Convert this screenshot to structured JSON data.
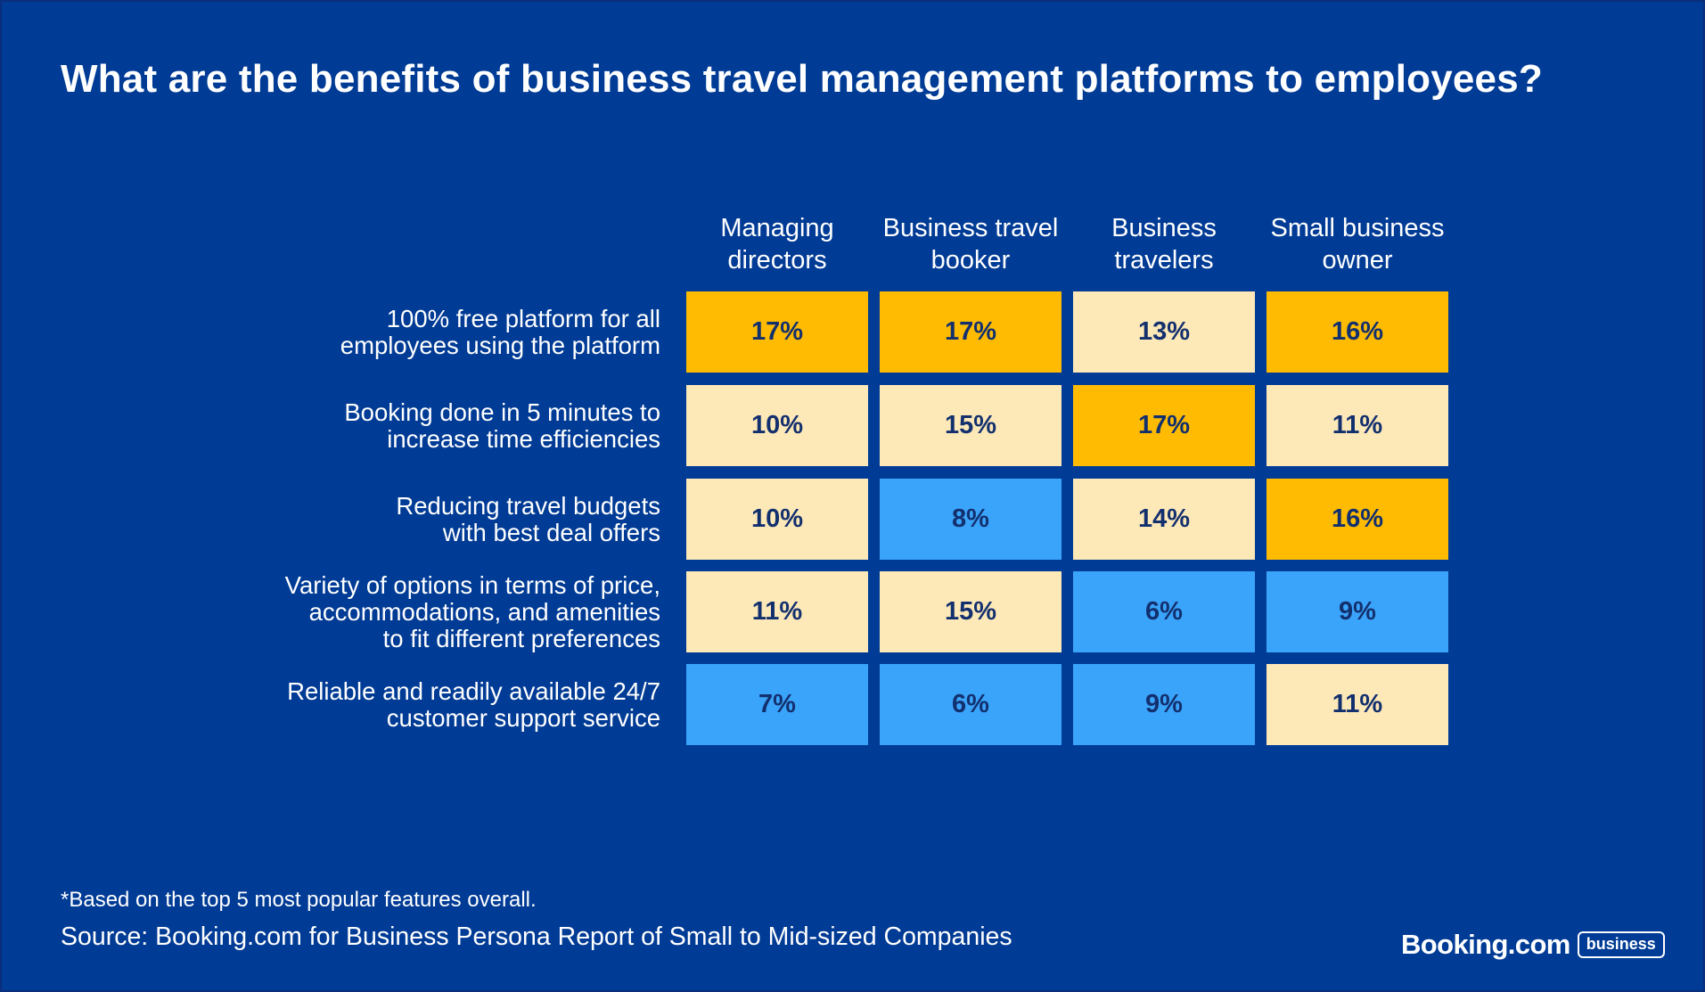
{
  "title": "What are the benefits of business travel management platforms to employees?",
  "chart_data": {
    "type": "heatmap",
    "title": "What are the benefits of business travel management platforms to employees?",
    "columns": [
      "Managing\ndirectors",
      "Business travel\nbooker",
      "Business\ntravelers",
      "Small business\nowner"
    ],
    "rows": [
      "100% free platform for all\nemployees using the platform",
      "Booking done in 5 minutes to\nincrease time efficiencies",
      "Reducing travel budgets\nwith best deal offers",
      "Variety of options in terms of price,\naccommodations, and amenities\nto fit different preferences",
      "Reliable and readily available 24/7\ncustomer support service"
    ],
    "values": [
      [
        17,
        17,
        13,
        16
      ],
      [
        10,
        15,
        17,
        11
      ],
      [
        10,
        8,
        14,
        16
      ],
      [
        11,
        15,
        6,
        9
      ],
      [
        7,
        6,
        9,
        11
      ]
    ],
    "value_labels": [
      [
        "17%",
        "17%",
        "13%",
        "16%"
      ],
      [
        "10%",
        "15%",
        "17%",
        "11%"
      ],
      [
        "10%",
        "8%",
        "14%",
        "16%"
      ],
      [
        "11%",
        "15%",
        "6%",
        "9%"
      ],
      [
        "7%",
        "6%",
        "9%",
        "11%"
      ]
    ],
    "color_scale": {
      "high": "#febb02",
      "mid": "#fde8b8",
      "low": "#3aa4fb",
      "high_min": 16,
      "low_max": 9
    },
    "text_color": "#13306e"
  },
  "colors": {
    "background": "#003b95",
    "text": "#ffffff"
  },
  "footnote": "*Based on the top 5 most popular features overall.",
  "source": "Source: Booking.com for Business Persona Report of Small to Mid-sized Companies",
  "brand": {
    "name": "Booking.com",
    "badge": "business"
  }
}
